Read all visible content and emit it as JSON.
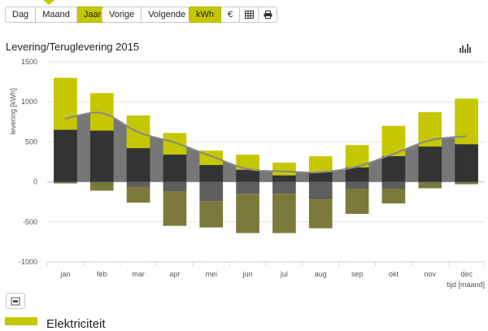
{
  "toolbar": {
    "period": [
      {
        "label": "Dag",
        "active": false
      },
      {
        "label": "Maand",
        "active": false
      },
      {
        "label": "Jaar",
        "active": true
      }
    ],
    "nav": [
      {
        "label": "Vorige"
      },
      {
        "label": "Volgende"
      }
    ],
    "unit": [
      {
        "label": "kWh",
        "active": true
      },
      {
        "label": "€",
        "active": false
      }
    ],
    "icons": [
      "table-icon",
      "print-icon"
    ]
  },
  "chart_type_icon": "bar-chart-icon",
  "export_icon": "export-icon",
  "footer": {
    "title": "Elektriciteit"
  },
  "colors": {
    "accent": "#c5c800",
    "usage_bar": "#333333",
    "return_bar": "#7b7a3a",
    "area": "#777777",
    "line": "#888888"
  },
  "chart_data": {
    "type": "bar",
    "title": "Levering/Teruglevering 2015",
    "ylabel": "levering [kWh]",
    "xlabel": "tijd [maand]",
    "ylim": [
      -1000,
      1500
    ],
    "yticks": [
      -1000,
      -500,
      0,
      500,
      1000,
      1500
    ],
    "categories": [
      "jan",
      "feb",
      "mar",
      "apr",
      "mei",
      "jun",
      "jul",
      "aug",
      "sep",
      "okt",
      "nov",
      "dec"
    ],
    "series": [
      {
        "values": [
          650,
          640,
          420,
          340,
          210,
          150,
          80,
          120,
          180,
          320,
          440,
          470
        ]
      },
      {
        "values": [
          650,
          470,
          410,
          270,
          180,
          190,
          160,
          200,
          280,
          380,
          430,
          570
        ]
      },
      {
        "values": [
          -20,
          -110,
          -260,
          -550,
          -570,
          -640,
          -640,
          -580,
          -400,
          -270,
          -80,
          -30
        ]
      },
      {
        "values": [
          -10,
          -10,
          -60,
          -120,
          -240,
          -150,
          -150,
          -220,
          -90,
          -90,
          -10,
          -10
        ]
      },
      {
        "values": [
          790,
          860,
          620,
          490,
          320,
          160,
          130,
          120,
          190,
          350,
          520,
          570
        ]
      }
    ],
    "grid": true
  }
}
